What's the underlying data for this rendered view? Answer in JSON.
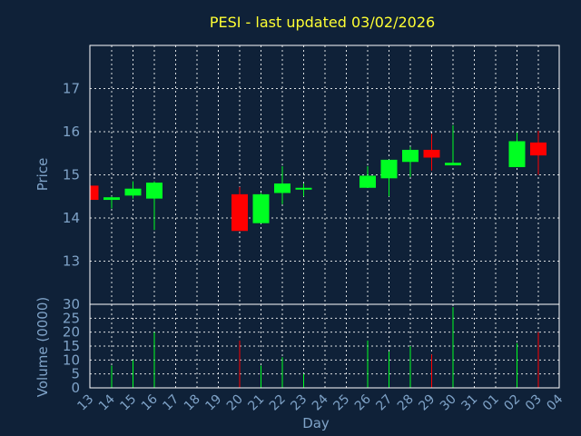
{
  "colors": {
    "background": "#0f2138",
    "frame": "#ffffff",
    "grid": "#ffffff",
    "title": "#ffff33",
    "axis_text": "#7fa3c8",
    "up": "#00ff22",
    "down": "#ff0000"
  },
  "chart_data": {
    "type": "candlestick",
    "title": "PESI - last updated 03/02/2026",
    "xlabel": "Day",
    "ylabel": "Price",
    "volume_label": "Volume (0000)",
    "price_ylim": [
      12.0,
      18.0
    ],
    "price_ticks": [
      13,
      14,
      15,
      16,
      17
    ],
    "volume_ylim": [
      0,
      30
    ],
    "volume_ticks": [
      0,
      5,
      10,
      15,
      20,
      25,
      30
    ],
    "grid": true,
    "x_labels": [
      "13",
      "14",
      "15",
      "16",
      "17",
      "18",
      "19",
      "20",
      "21",
      "22",
      "23",
      "24",
      "25",
      "26",
      "27",
      "28",
      "29",
      "30",
      "31",
      "01",
      "02",
      "03",
      "04"
    ],
    "candles": [
      {
        "label": "13",
        "open": 14.75,
        "close": 14.42,
        "high": 14.75,
        "low": 14.42,
        "volume": 0
      },
      {
        "label": "14",
        "open": 14.42,
        "close": 14.48,
        "high": 14.5,
        "low": 14.22,
        "volume": 8
      },
      {
        "label": "15",
        "open": 14.52,
        "close": 14.68,
        "high": 14.85,
        "low": 14.45,
        "volume": 10
      },
      {
        "label": "16",
        "open": 14.45,
        "close": 14.82,
        "high": 14.85,
        "low": 13.72,
        "volume": 20
      },
      {
        "label": "20",
        "open": 14.55,
        "close": 13.7,
        "high": 14.72,
        "low": 13.7,
        "volume": 17
      },
      {
        "label": "21",
        "open": 13.88,
        "close": 14.55,
        "high": 14.58,
        "low": 13.88,
        "volume": 8
      },
      {
        "label": "22",
        "open": 14.58,
        "close": 14.8,
        "high": 15.2,
        "low": 14.32,
        "volume": 11
      },
      {
        "label": "23",
        "open": 14.66,
        "close": 14.7,
        "high": 14.8,
        "low": 14.5,
        "volume": 5
      },
      {
        "label": "26",
        "open": 14.7,
        "close": 14.98,
        "high": 15.2,
        "low": 14.7,
        "volume": 17
      },
      {
        "label": "27",
        "open": 14.92,
        "close": 15.35,
        "high": 15.35,
        "low": 14.5,
        "volume": 13
      },
      {
        "label": "28",
        "open": 15.3,
        "close": 15.58,
        "high": 15.65,
        "low": 14.95,
        "volume": 15
      },
      {
        "label": "29",
        "open": 15.58,
        "close": 15.4,
        "high": 15.95,
        "low": 15.1,
        "volume": 12
      },
      {
        "label": "30",
        "open": 15.22,
        "close": 15.28,
        "high": 16.15,
        "low": 15.22,
        "volume": 29
      },
      {
        "label": "02",
        "open": 15.18,
        "close": 15.78,
        "high": 15.98,
        "low": 15.18,
        "volume": 16
      },
      {
        "label": "03",
        "open": 15.75,
        "close": 15.45,
        "high": 16.02,
        "low": 15.0,
        "volume": 20
      }
    ]
  }
}
